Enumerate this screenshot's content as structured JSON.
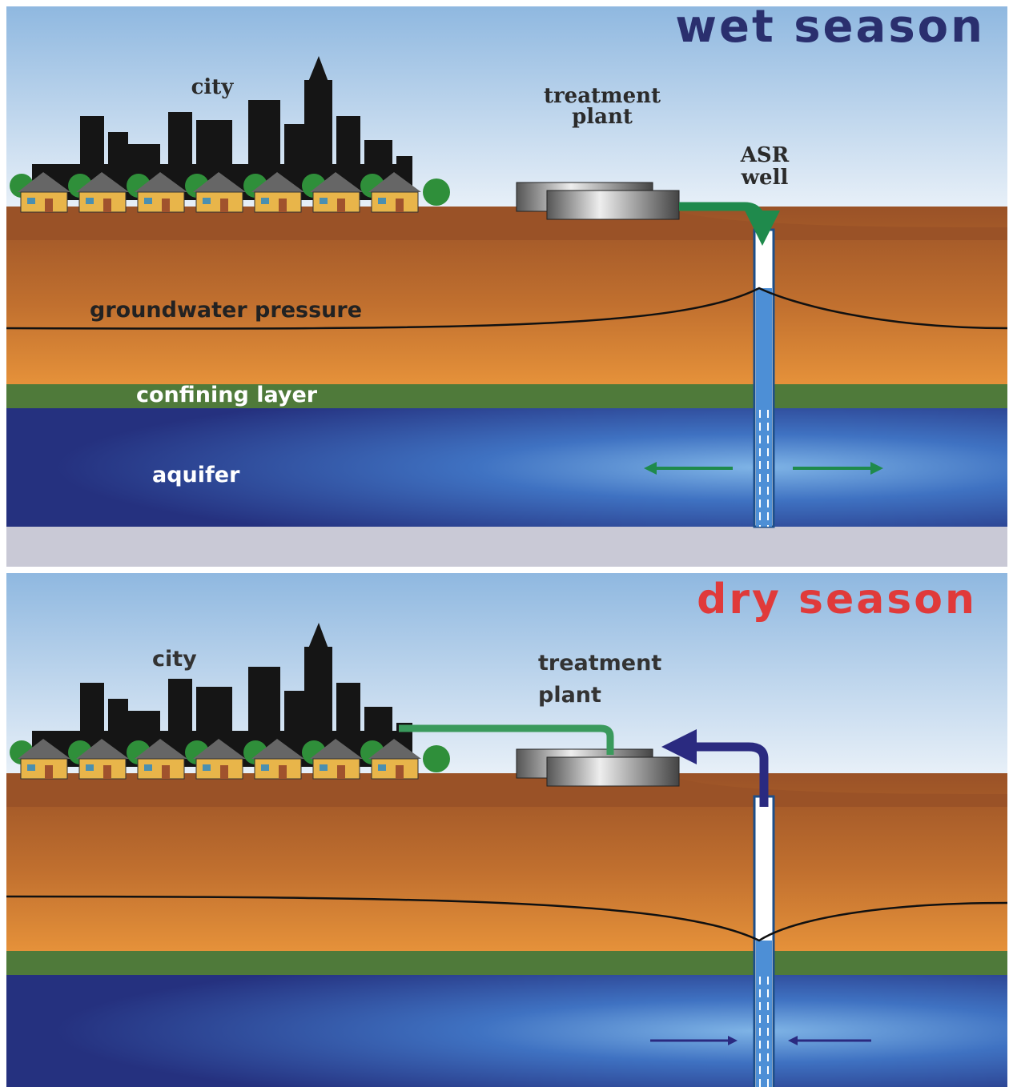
{
  "wet": {
    "title": "wet season",
    "city": "city",
    "plant": [
      "treatment",
      "plant"
    ],
    "well": [
      "ASR",
      "well"
    ],
    "pressure": "groundwater pressure",
    "confining": "confining layer",
    "aquifer": "aquifer"
  },
  "dry": {
    "title": "dry season",
    "city": "city",
    "plant": [
      "treatment",
      "plant"
    ]
  }
}
